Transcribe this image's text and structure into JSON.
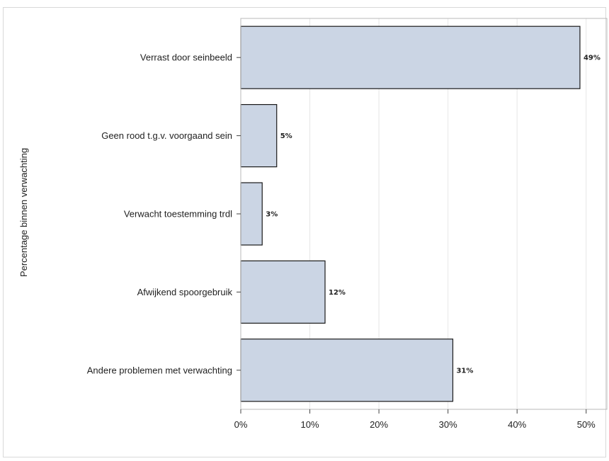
{
  "chart_data": {
    "type": "bar",
    "orientation": "horizontal",
    "categories": [
      "Verrast door seinbeeld",
      "Geen rood t.g.v. voorgaand sein",
      "Verwacht toestemming trdl",
      "Afwijkend spoorgebruik",
      "Andere problemen met verwachting"
    ],
    "values": [
      49.1,
      5.2,
      3.1,
      12.2,
      30.7
    ],
    "data_labels": [
      "49%",
      "5%",
      "3%",
      "12%",
      "31%"
    ],
    "xlabel": "",
    "ylabel": "Percentage binnen verwachting",
    "xlim": [
      0,
      53
    ],
    "xticks": [
      0,
      10,
      20,
      30,
      40,
      50
    ],
    "xtick_labels": [
      "0%",
      "10%",
      "20%",
      "30%",
      "40%",
      "50%"
    ],
    "grid": "vertical",
    "bar_color": "#cbd5e4",
    "bar_edge_color": "#1a1a1a"
  }
}
